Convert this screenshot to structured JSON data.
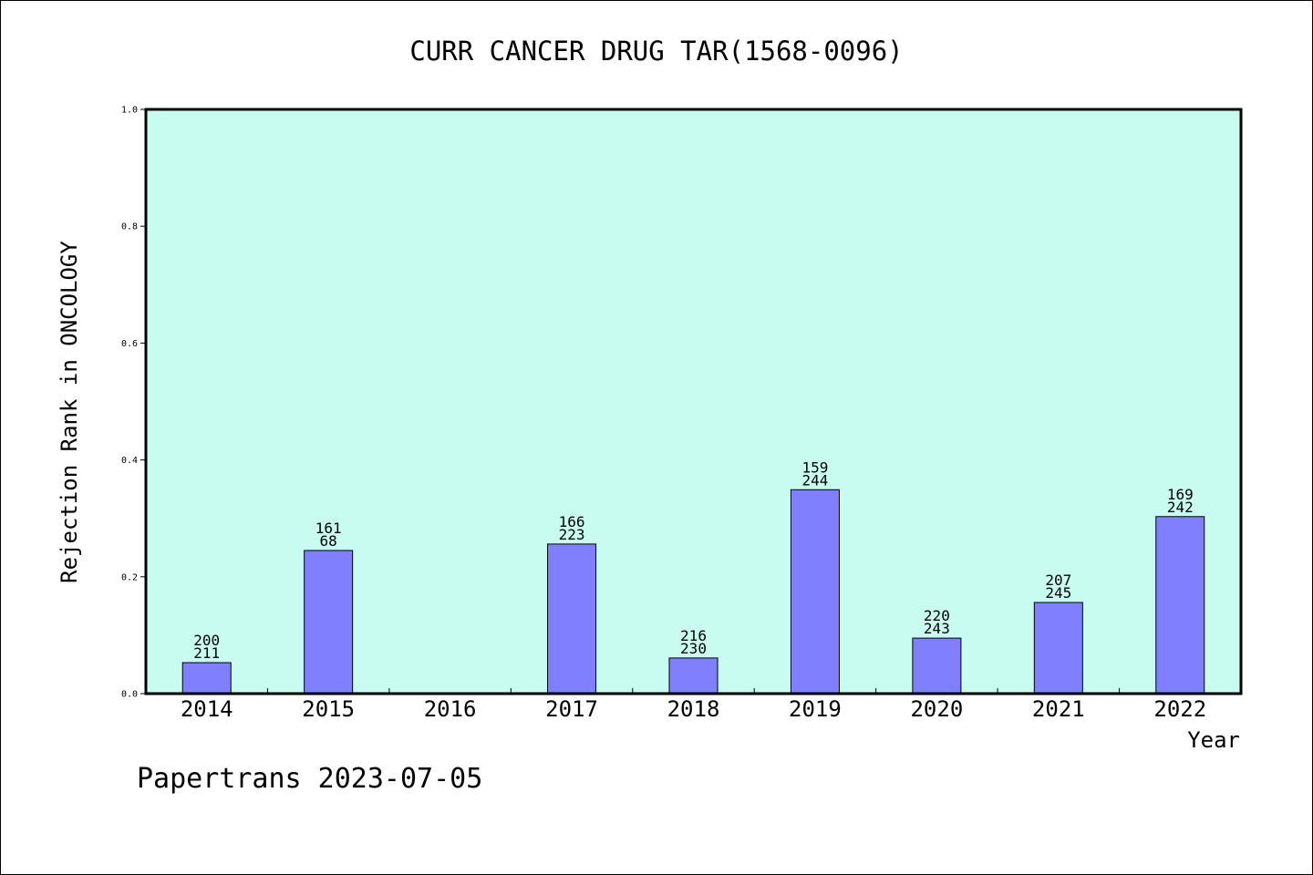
{
  "chart_data": {
    "type": "bar",
    "title": "CURR CANCER DRUG TAR(1568-0096)",
    "xlabel": "Year",
    "ylabel": "Rejection Rank in ONCOLOGY",
    "ylim": [
      0,
      1.0
    ],
    "yticks": [
      "0.0",
      "0.2",
      "0.4",
      "0.6",
      "0.8",
      "1.0"
    ],
    "categories": [
      "2014",
      "2015",
      "2016",
      "2017",
      "2018",
      "2019",
      "2020",
      "2021",
      "2022"
    ],
    "values": [
      0.053,
      0.245,
      null,
      0.256,
      0.061,
      0.349,
      0.095,
      0.156,
      0.303
    ],
    "label_top": [
      "200",
      "161",
      "",
      "166",
      "216",
      "159",
      "220",
      "207",
      "169"
    ],
    "label_bottom": [
      "211",
      "68",
      "",
      "223",
      "230",
      "244",
      "243",
      "245",
      "242"
    ],
    "grid": false,
    "colors": {
      "plot_background": "#c8fcf0",
      "bar_fill": "#8080ff",
      "bar_stroke": "#000000"
    }
  },
  "footer": {
    "watermark": "Papertrans 2023-07-05"
  }
}
